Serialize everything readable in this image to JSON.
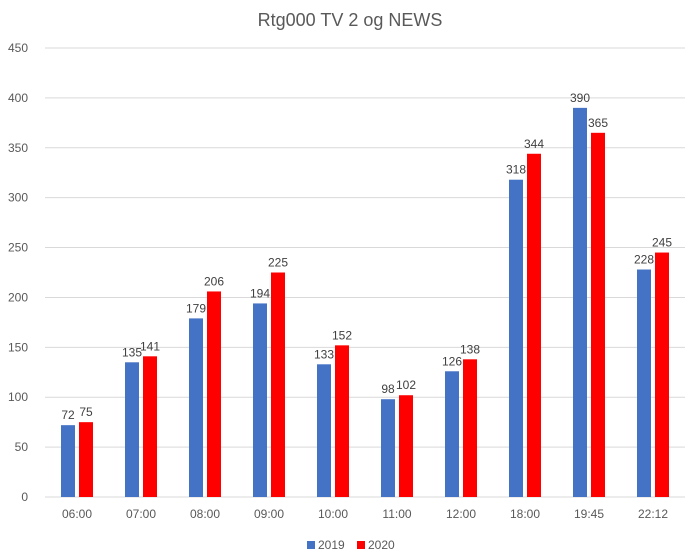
{
  "chart_data": {
    "type": "bar",
    "title": "Rtg000 TV 2 og NEWS",
    "categories": [
      "06:00",
      "07:00",
      "08:00",
      "09:00",
      "10:00",
      "11:00",
      "12:00",
      "18:00",
      "19:45",
      "22:12"
    ],
    "series": [
      {
        "name": "2019",
        "color": "#4472c4",
        "values": [
          72,
          135,
          179,
          194,
          133,
          98,
          126,
          318,
          390,
          228
        ]
      },
      {
        "name": "2020",
        "color": "#ff0000",
        "values": [
          75,
          141,
          206,
          225,
          152,
          102,
          138,
          344,
          365,
          245
        ]
      }
    ],
    "ylim": [
      0,
      450
    ],
    "yticks": [
      "0",
      "50",
      "100",
      "150",
      "200",
      "250",
      "300",
      "350",
      "400",
      "450"
    ],
    "grid": true,
    "legend": "bottom-center",
    "xlabel": "",
    "ylabel": ""
  }
}
